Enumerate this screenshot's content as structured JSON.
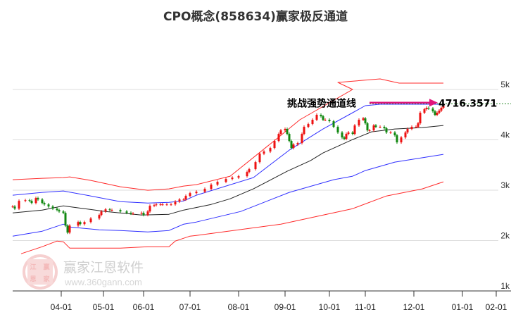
{
  "chart_data": {
    "type": "candlestick",
    "title": "CPO概念(858634)赢家极反通道",
    "ylim": [
      1000,
      5000
    ],
    "yticks": [
      {
        "v": 5000,
        "label": "5k"
      },
      {
        "v": 4000,
        "label": "4k"
      },
      {
        "v": 3000,
        "label": "3k"
      },
      {
        "v": 2000,
        "label": "2k"
      },
      {
        "v": 1000,
        "label": "1k"
      }
    ],
    "xlim_days": [
      0,
      236
    ],
    "xticks": [
      {
        "day": 23,
        "label": "04-01"
      },
      {
        "day": 43,
        "label": "05-01"
      },
      {
        "day": 62,
        "label": "06-01"
      },
      {
        "day": 84,
        "label": "07-01"
      },
      {
        "day": 107,
        "label": "08-01"
      },
      {
        "day": 129,
        "label": "09-01"
      },
      {
        "day": 150,
        "label": "10-01"
      },
      {
        "day": 167,
        "label": "11-01"
      },
      {
        "day": 190,
        "label": "12-01"
      },
      {
        "day": 213,
        "label": "01-01"
      },
      {
        "day": 229,
        "label": "02-01"
      }
    ],
    "candles_day_close": [
      [
        0,
        2676
      ],
      [
        1,
        2634
      ],
      [
        3,
        2788
      ],
      [
        6,
        2802
      ],
      [
        8,
        2788
      ],
      [
        9,
        2746
      ],
      [
        11,
        2844
      ],
      [
        12,
        2816
      ],
      [
        14,
        2746
      ],
      [
        15,
        2718
      ],
      [
        17,
        2676
      ],
      [
        19,
        2634
      ],
      [
        21,
        2606
      ],
      [
        22,
        2578
      ],
      [
        24,
        2550
      ],
      [
        25,
        2298
      ],
      [
        26,
        2158
      ],
      [
        27,
        2298
      ],
      [
        31,
        2368
      ],
      [
        32,
        2326
      ],
      [
        34,
        2368
      ],
      [
        37,
        2438
      ],
      [
        41,
        2508
      ],
      [
        42,
        2578
      ],
      [
        44,
        2620
      ],
      [
        46,
        2606
      ],
      [
        47,
        2606
      ],
      [
        51,
        2578
      ],
      [
        54,
        2550
      ],
      [
        56,
        2536
      ],
      [
        57,
        2536
      ],
      [
        61,
        2550
      ],
      [
        62,
        2508
      ],
      [
        64,
        2578
      ],
      [
        65,
        2690
      ],
      [
        67,
        2704
      ],
      [
        68,
        2718
      ],
      [
        70,
        2718
      ],
      [
        71,
        2718
      ],
      [
        73,
        2718
      ],
      [
        75,
        2718
      ],
      [
        77,
        2774
      ],
      [
        79,
        2816
      ],
      [
        81,
        2816
      ],
      [
        82,
        2886
      ],
      [
        84,
        2942
      ],
      [
        87,
        2970
      ],
      [
        91,
        3026
      ],
      [
        94,
        3110
      ],
      [
        97,
        3166
      ],
      [
        101,
        3222
      ],
      [
        104,
        3250
      ],
      [
        107,
        3278
      ],
      [
        111,
        3362
      ],
      [
        112,
        3418
      ],
      [
        115,
        3558
      ],
      [
        117,
        3726
      ],
      [
        119,
        3768
      ],
      [
        122,
        3838
      ],
      [
        124,
        3978
      ],
      [
        126,
        4118
      ],
      [
        127,
        4188
      ],
      [
        129,
        4216
      ],
      [
        130,
        4118
      ],
      [
        131,
        3978
      ],
      [
        132,
        3838
      ],
      [
        133,
        3908
      ],
      [
        135,
        3936
      ],
      [
        137,
        4118
      ],
      [
        138,
        4258
      ],
      [
        140,
        4314
      ],
      [
        142,
        4398
      ],
      [
        144,
        4496
      ],
      [
        146,
        4468
      ],
      [
        147,
        4398
      ],
      [
        148,
        4398
      ],
      [
        150,
        4370
      ],
      [
        152,
        4258
      ],
      [
        154,
        4146
      ],
      [
        156,
        4048
      ],
      [
        157,
        4020
      ],
      [
        158,
        4118
      ],
      [
        159,
        4146
      ],
      [
        161,
        4118
      ],
      [
        162,
        4286
      ],
      [
        164,
        4398
      ],
      [
        166,
        4426
      ],
      [
        167,
        4328
      ],
      [
        168,
        4188
      ],
      [
        169,
        4188
      ],
      [
        171,
        4286
      ],
      [
        172,
        4258
      ],
      [
        174,
        4258
      ],
      [
        176,
        4230
      ],
      [
        177,
        4146
      ],
      [
        179,
        4146
      ],
      [
        181,
        4090
      ],
      [
        182,
        3950
      ],
      [
        184,
        4048
      ],
      [
        186,
        4146
      ],
      [
        187,
        4216
      ],
      [
        189,
        4258
      ],
      [
        191,
        4258
      ],
      [
        192,
        4328
      ],
      [
        193,
        4538
      ],
      [
        195,
        4608
      ],
      [
        196,
        4636
      ],
      [
        197,
        4622
      ],
      [
        199,
        4566
      ],
      [
        200,
        4496
      ],
      [
        201,
        4538
      ],
      [
        202,
        4580
      ],
      [
        203,
        4636
      ],
      [
        204,
        4678
      ]
    ],
    "series": [
      {
        "name": "upper-red",
        "color": "#ff2a2a",
        "points": [
          [
            0,
            3208
          ],
          [
            14,
            3236
          ],
          [
            24,
            3250
          ],
          [
            27,
            3264
          ],
          [
            37,
            3194
          ],
          [
            51,
            3068
          ],
          [
            64,
            2998
          ],
          [
            74,
            3026
          ],
          [
            81,
            3082
          ],
          [
            87,
            3110
          ],
          [
            103,
            3278
          ],
          [
            125,
            4020
          ],
          [
            136,
            4398
          ],
          [
            161,
            5000
          ],
          [
            154,
            5140
          ],
          [
            174,
            5210
          ],
          [
            183,
            5126
          ],
          [
            204,
            5126
          ]
        ]
      },
      {
        "name": "upper-blue",
        "color": "#3030ff",
        "points": [
          [
            0,
            2900
          ],
          [
            14,
            2956
          ],
          [
            24,
            2984
          ],
          [
            37,
            2886
          ],
          [
            51,
            2774
          ],
          [
            64,
            2746
          ],
          [
            74,
            2760
          ],
          [
            81,
            2788
          ],
          [
            87,
            2900
          ],
          [
            114,
            3250
          ],
          [
            131,
            3796
          ],
          [
            147,
            4216
          ],
          [
            161,
            4538
          ],
          [
            167,
            4678
          ],
          [
            174,
            4706
          ],
          [
            204,
            4706
          ]
        ]
      },
      {
        "name": "middle-black",
        "color": "#222222",
        "points": [
          [
            0,
            2550
          ],
          [
            14,
            2606
          ],
          [
            24,
            2690
          ],
          [
            34,
            2634
          ],
          [
            44,
            2578
          ],
          [
            61,
            2508
          ],
          [
            74,
            2522
          ],
          [
            81,
            2606
          ],
          [
            94,
            2718
          ],
          [
            103,
            2830
          ],
          [
            114,
            3026
          ],
          [
            130,
            3376
          ],
          [
            141,
            3586
          ],
          [
            147,
            3740
          ],
          [
            161,
            4006
          ],
          [
            170,
            4160
          ],
          [
            181,
            4216
          ],
          [
            194,
            4244
          ],
          [
            204,
            4286
          ]
        ]
      },
      {
        "name": "lower-blue",
        "color": "#3030ff",
        "points": [
          [
            0,
            2088
          ],
          [
            14,
            2186
          ],
          [
            24,
            2326
          ],
          [
            27,
            2270
          ],
          [
            41,
            2214
          ],
          [
            51,
            2200
          ],
          [
            64,
            2172
          ],
          [
            74,
            2200
          ],
          [
            81,
            2326
          ],
          [
            87,
            2368
          ],
          [
            108,
            2578
          ],
          [
            131,
            2956
          ],
          [
            152,
            3208
          ],
          [
            161,
            3278
          ],
          [
            167,
            3390
          ],
          [
            181,
            3558
          ],
          [
            204,
            3712
          ]
        ]
      },
      {
        "name": "lower-red",
        "color": "#ff2a2a",
        "points": [
          [
            4,
            1738
          ],
          [
            14,
            1878
          ],
          [
            21,
            1990
          ],
          [
            24,
            1976
          ],
          [
            27,
            1850
          ],
          [
            41,
            1850
          ],
          [
            51,
            1850
          ],
          [
            64,
            1878
          ],
          [
            74,
            1878
          ],
          [
            77,
            1990
          ],
          [
            84,
            2088
          ],
          [
            87,
            2102
          ],
          [
            127,
            2326
          ],
          [
            161,
            2634
          ],
          [
            177,
            2886
          ],
          [
            194,
            3026
          ],
          [
            204,
            3166
          ]
        ]
      }
    ],
    "annotation": {
      "text": "挑战强势通道线",
      "value": "4716.3571",
      "level": 4716.3571
    },
    "colors": {
      "up": "#ee1111",
      "down": "#118811",
      "arrow": "#e0147a",
      "level_line": "#2a8a2a",
      "grid": "#dddddd"
    }
  },
  "watermark": {
    "logo": [
      "江",
      "赢",
      "恩",
      "家"
    ],
    "brand": "赢家江恩软件",
    "url": "www.360gann.com"
  }
}
